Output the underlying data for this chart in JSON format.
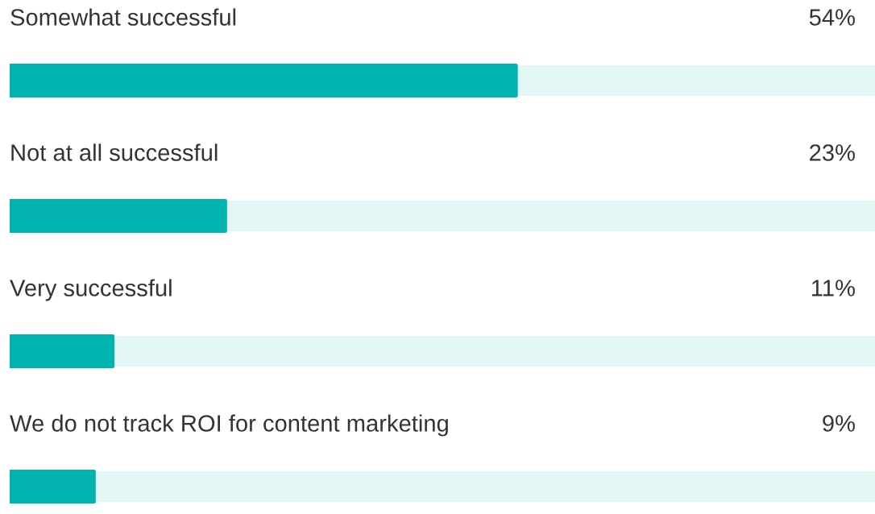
{
  "chart_data": {
    "type": "bar",
    "orientation": "horizontal",
    "categories": [
      "Somewhat successful",
      "Not at all successful",
      "Very successful",
      "We do not track ROI for content marketing"
    ],
    "values": [
      54,
      23,
      11,
      9
    ],
    "value_labels": [
      "54%",
      "23%",
      "11%",
      "9%"
    ],
    "color": "#00b3b0",
    "xlim": [
      0,
      100
    ]
  }
}
